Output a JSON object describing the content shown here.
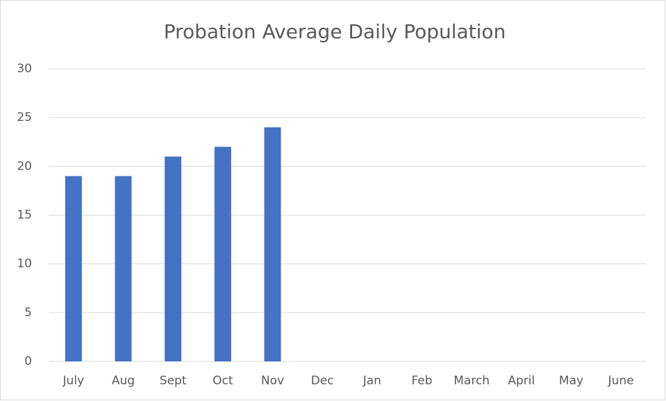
{
  "chart_data": {
    "type": "bar",
    "title": "Probation Average Daily Population",
    "categories": [
      "July",
      "Aug",
      "Sept",
      "Oct",
      "Nov",
      "Dec",
      "Jan",
      "Feb",
      "March",
      "April",
      "May",
      "June"
    ],
    "values": [
      19,
      19,
      21,
      22,
      24,
      null,
      null,
      null,
      null,
      null,
      null,
      null
    ],
    "color": "#4472c4",
    "ylim": [
      0,
      30
    ],
    "yticks": [
      0,
      5,
      10,
      15,
      20,
      25,
      30
    ],
    "grid": true
  }
}
